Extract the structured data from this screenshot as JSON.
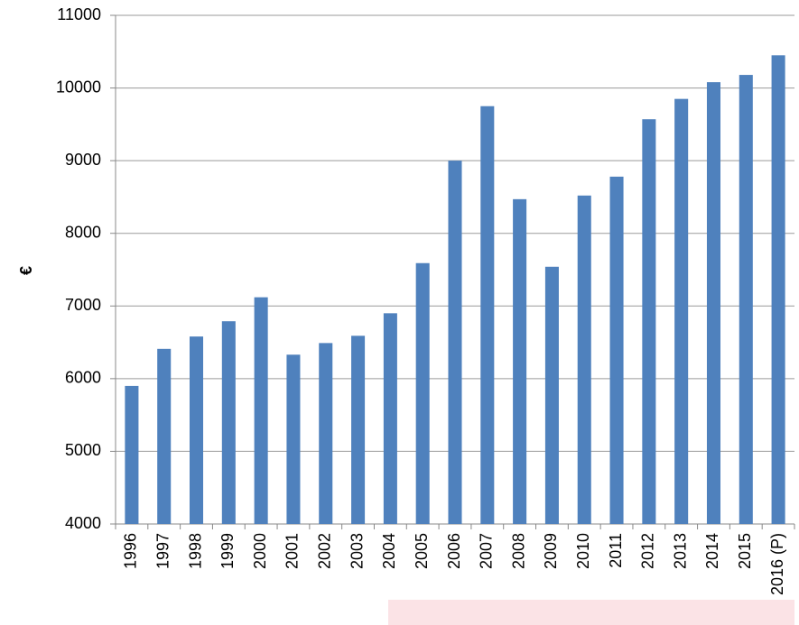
{
  "chart_data": {
    "type": "bar",
    "y_label": "€",
    "categories": [
      "1996",
      "1997",
      "1998",
      "1999",
      "2000",
      "2001",
      "2002",
      "2003",
      "2004",
      "2005",
      "2006",
      "2007",
      "2008",
      "2009",
      "2010",
      "2011",
      "2012",
      "2013",
      "2014",
      "2015",
      "2016 (P)"
    ],
    "values": [
      5900,
      6410,
      6580,
      6790,
      7120,
      6330,
      6490,
      6590,
      6900,
      7590,
      9000,
      9750,
      8470,
      7540,
      8520,
      8780,
      9570,
      9850,
      10080,
      10180,
      10450
    ],
    "color": "#4f81bd",
    "ylim": [
      4000,
      11000
    ],
    "yticks": [
      4000,
      5000,
      6000,
      7000,
      8000,
      9000,
      10000,
      11000
    ],
    "grid": true
  }
}
